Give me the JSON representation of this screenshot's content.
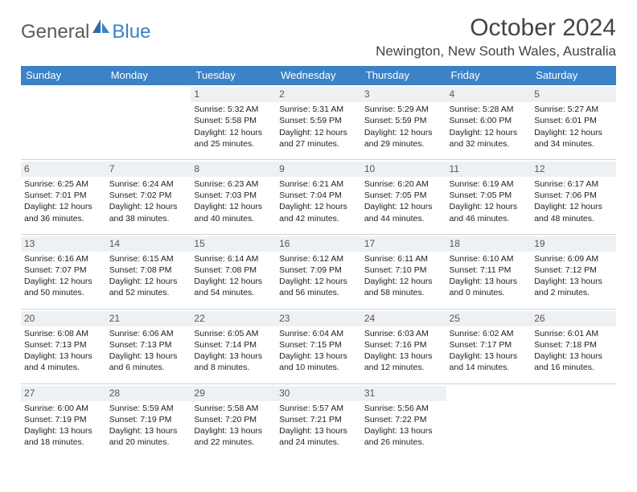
{
  "logo": {
    "part1": "General",
    "part2": "Blue"
  },
  "title": "October 2024",
  "location": "Newington, New South Wales, Australia",
  "colors": {
    "header_bg": "#3b82c7",
    "header_text": "#ffffff",
    "daynum_bg": "#eef1f4",
    "border": "#c9d3dc",
    "logo_gray": "#5a5a5a",
    "logo_blue": "#3b7fc4",
    "body_text": "#333333"
  },
  "days_of_week": [
    "Sunday",
    "Monday",
    "Tuesday",
    "Wednesday",
    "Thursday",
    "Friday",
    "Saturday"
  ],
  "weeks": [
    [
      {
        "n": "",
        "sr": "",
        "ss": "",
        "dl": ""
      },
      {
        "n": "",
        "sr": "",
        "ss": "",
        "dl": ""
      },
      {
        "n": "1",
        "sr": "Sunrise: 5:32 AM",
        "ss": "Sunset: 5:58 PM",
        "dl": "Daylight: 12 hours and 25 minutes."
      },
      {
        "n": "2",
        "sr": "Sunrise: 5:31 AM",
        "ss": "Sunset: 5:59 PM",
        "dl": "Daylight: 12 hours and 27 minutes."
      },
      {
        "n": "3",
        "sr": "Sunrise: 5:29 AM",
        "ss": "Sunset: 5:59 PM",
        "dl": "Daylight: 12 hours and 29 minutes."
      },
      {
        "n": "4",
        "sr": "Sunrise: 5:28 AM",
        "ss": "Sunset: 6:00 PM",
        "dl": "Daylight: 12 hours and 32 minutes."
      },
      {
        "n": "5",
        "sr": "Sunrise: 5:27 AM",
        "ss": "Sunset: 6:01 PM",
        "dl": "Daylight: 12 hours and 34 minutes."
      }
    ],
    [
      {
        "n": "6",
        "sr": "Sunrise: 6:25 AM",
        "ss": "Sunset: 7:01 PM",
        "dl": "Daylight: 12 hours and 36 minutes."
      },
      {
        "n": "7",
        "sr": "Sunrise: 6:24 AM",
        "ss": "Sunset: 7:02 PM",
        "dl": "Daylight: 12 hours and 38 minutes."
      },
      {
        "n": "8",
        "sr": "Sunrise: 6:23 AM",
        "ss": "Sunset: 7:03 PM",
        "dl": "Daylight: 12 hours and 40 minutes."
      },
      {
        "n": "9",
        "sr": "Sunrise: 6:21 AM",
        "ss": "Sunset: 7:04 PM",
        "dl": "Daylight: 12 hours and 42 minutes."
      },
      {
        "n": "10",
        "sr": "Sunrise: 6:20 AM",
        "ss": "Sunset: 7:05 PM",
        "dl": "Daylight: 12 hours and 44 minutes."
      },
      {
        "n": "11",
        "sr": "Sunrise: 6:19 AM",
        "ss": "Sunset: 7:05 PM",
        "dl": "Daylight: 12 hours and 46 minutes."
      },
      {
        "n": "12",
        "sr": "Sunrise: 6:17 AM",
        "ss": "Sunset: 7:06 PM",
        "dl": "Daylight: 12 hours and 48 minutes."
      }
    ],
    [
      {
        "n": "13",
        "sr": "Sunrise: 6:16 AM",
        "ss": "Sunset: 7:07 PM",
        "dl": "Daylight: 12 hours and 50 minutes."
      },
      {
        "n": "14",
        "sr": "Sunrise: 6:15 AM",
        "ss": "Sunset: 7:08 PM",
        "dl": "Daylight: 12 hours and 52 minutes."
      },
      {
        "n": "15",
        "sr": "Sunrise: 6:14 AM",
        "ss": "Sunset: 7:08 PM",
        "dl": "Daylight: 12 hours and 54 minutes."
      },
      {
        "n": "16",
        "sr": "Sunrise: 6:12 AM",
        "ss": "Sunset: 7:09 PM",
        "dl": "Daylight: 12 hours and 56 minutes."
      },
      {
        "n": "17",
        "sr": "Sunrise: 6:11 AM",
        "ss": "Sunset: 7:10 PM",
        "dl": "Daylight: 12 hours and 58 minutes."
      },
      {
        "n": "18",
        "sr": "Sunrise: 6:10 AM",
        "ss": "Sunset: 7:11 PM",
        "dl": "Daylight: 13 hours and 0 minutes."
      },
      {
        "n": "19",
        "sr": "Sunrise: 6:09 AM",
        "ss": "Sunset: 7:12 PM",
        "dl": "Daylight: 13 hours and 2 minutes."
      }
    ],
    [
      {
        "n": "20",
        "sr": "Sunrise: 6:08 AM",
        "ss": "Sunset: 7:13 PM",
        "dl": "Daylight: 13 hours and 4 minutes."
      },
      {
        "n": "21",
        "sr": "Sunrise: 6:06 AM",
        "ss": "Sunset: 7:13 PM",
        "dl": "Daylight: 13 hours and 6 minutes."
      },
      {
        "n": "22",
        "sr": "Sunrise: 6:05 AM",
        "ss": "Sunset: 7:14 PM",
        "dl": "Daylight: 13 hours and 8 minutes."
      },
      {
        "n": "23",
        "sr": "Sunrise: 6:04 AM",
        "ss": "Sunset: 7:15 PM",
        "dl": "Daylight: 13 hours and 10 minutes."
      },
      {
        "n": "24",
        "sr": "Sunrise: 6:03 AM",
        "ss": "Sunset: 7:16 PM",
        "dl": "Daylight: 13 hours and 12 minutes."
      },
      {
        "n": "25",
        "sr": "Sunrise: 6:02 AM",
        "ss": "Sunset: 7:17 PM",
        "dl": "Daylight: 13 hours and 14 minutes."
      },
      {
        "n": "26",
        "sr": "Sunrise: 6:01 AM",
        "ss": "Sunset: 7:18 PM",
        "dl": "Daylight: 13 hours and 16 minutes."
      }
    ],
    [
      {
        "n": "27",
        "sr": "Sunrise: 6:00 AM",
        "ss": "Sunset: 7:19 PM",
        "dl": "Daylight: 13 hours and 18 minutes."
      },
      {
        "n": "28",
        "sr": "Sunrise: 5:59 AM",
        "ss": "Sunset: 7:19 PM",
        "dl": "Daylight: 13 hours and 20 minutes."
      },
      {
        "n": "29",
        "sr": "Sunrise: 5:58 AM",
        "ss": "Sunset: 7:20 PM",
        "dl": "Daylight: 13 hours and 22 minutes."
      },
      {
        "n": "30",
        "sr": "Sunrise: 5:57 AM",
        "ss": "Sunset: 7:21 PM",
        "dl": "Daylight: 13 hours and 24 minutes."
      },
      {
        "n": "31",
        "sr": "Sunrise: 5:56 AM",
        "ss": "Sunset: 7:22 PM",
        "dl": "Daylight: 13 hours and 26 minutes."
      },
      {
        "n": "",
        "sr": "",
        "ss": "",
        "dl": ""
      },
      {
        "n": "",
        "sr": "",
        "ss": "",
        "dl": ""
      }
    ]
  ]
}
